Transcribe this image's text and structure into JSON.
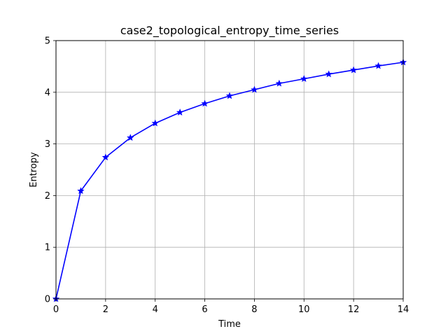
{
  "chart_data": {
    "type": "line",
    "title": "case2_topological_entropy_time_series",
    "xlabel": "Time",
    "ylabel": "Entropy",
    "xlim": [
      0,
      14
    ],
    "ylim": [
      0,
      5
    ],
    "xticks": [
      "0",
      "2",
      "4",
      "6",
      "8",
      "10",
      "12",
      "14"
    ],
    "yticks": [
      "0",
      "1",
      "2",
      "3",
      "4",
      "5"
    ],
    "grid": true,
    "marker": "star",
    "color": "#0000ff",
    "x": [
      0,
      1,
      2,
      3,
      4,
      5,
      6,
      7,
      8,
      9,
      10,
      11,
      12,
      13,
      14
    ],
    "series": [
      {
        "values": [
          0,
          2.09,
          2.74,
          3.12,
          3.4,
          3.61,
          3.78,
          3.93,
          4.05,
          4.17,
          4.26,
          4.35,
          4.43,
          4.51,
          4.58
        ]
      }
    ]
  }
}
